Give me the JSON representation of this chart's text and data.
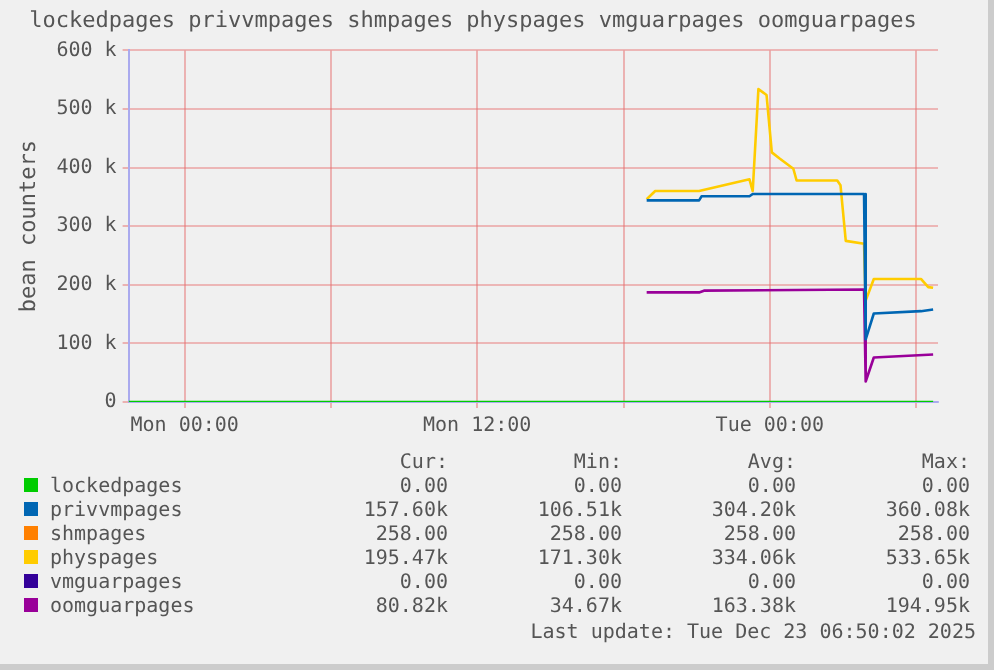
{
  "chart_data": {
    "type": "line",
    "title": "lockedpages privvmpages shmpages physpages vmguarpages oomguarpages",
    "ylabel": "bean counters",
    "xlim": [
      "2025-12-21T21:42",
      "2025-12-23T06:54"
    ],
    "xticks": [
      {
        "value": "2025-12-22T00:00",
        "label": "Mon 00:00"
      },
      {
        "value": "2025-12-22T06:00",
        "label": null
      },
      {
        "value": "2025-12-22T12:00",
        "label": "Mon 12:00"
      },
      {
        "value": "2025-12-22T18:00",
        "label": null
      },
      {
        "value": "2025-12-23T00:00",
        "label": "Tue 00:00"
      },
      {
        "value": "2025-12-23T06:00",
        "label": null
      }
    ],
    "ylim": [
      0,
      600000
    ],
    "yticks": [
      {
        "value": 0,
        "label": "0"
      },
      {
        "value": 100000,
        "label": "100 k"
      },
      {
        "value": 200000,
        "label": "200 k"
      },
      {
        "value": 300000,
        "label": "300 k"
      },
      {
        "value": 400000,
        "label": "400 k"
      },
      {
        "value": 500000,
        "label": "500 k"
      },
      {
        "value": 600000,
        "label": "600 k"
      }
    ],
    "grid": true,
    "legend": "bottom",
    "marker": "none",
    "line_style": "solid",
    "series": [
      {
        "name": "lockedpages",
        "color": "#00cc00",
        "x": [
          "2025-12-21T21:42",
          "2025-12-23T06:42"
        ],
        "values": [
          0,
          0
        ]
      },
      {
        "name": "privvmpages",
        "color": "#0066b3",
        "x": [
          "2025-12-22T18:57",
          "2025-12-22T21:06",
          "2025-12-22T21:12",
          "2025-12-22T23:10",
          "2025-12-22T23:18",
          "2025-12-23T03:52",
          "2025-12-23T03:56",
          "2025-12-23T04:16",
          "2025-12-23T06:12",
          "2025-12-23T06:42"
        ],
        "values": [
          344000,
          344000,
          351000,
          351000,
          355000,
          355000,
          107000,
          151000,
          155000,
          158000
        ]
      },
      {
        "name": "shmpages",
        "color": "#ff8000"
      },
      {
        "name": "physpages",
        "color": "#ffcc00",
        "x": [
          "2025-12-22T18:57",
          "2025-12-22T19:18",
          "2025-12-22T21:06",
          "2025-12-22T23:10",
          "2025-12-22T23:18",
          "2025-12-22T23:32",
          "2025-12-22T23:52",
          "2025-12-23T00:05",
          "2025-12-23T00:25",
          "2025-12-23T00:58",
          "2025-12-23T01:06",
          "2025-12-23T02:46",
          "2025-12-23T02:54",
          "2025-12-23T03:07",
          "2025-12-23T03:52",
          "2025-12-23T03:56",
          "2025-12-23T04:16",
          "2025-12-23T06:12",
          "2025-12-23T06:30",
          "2025-12-23T06:42"
        ],
        "values": [
          346000,
          360000,
          360000,
          380000,
          360000,
          534000,
          524000,
          426000,
          415000,
          398000,
          378000,
          378000,
          370000,
          275000,
          270000,
          173000,
          210000,
          210000,
          196000,
          195000
        ]
      },
      {
        "name": "vmguarpages",
        "color": "#330099"
      },
      {
        "name": "oomguarpages",
        "color": "#990099",
        "x": [
          "2025-12-22T18:57",
          "2025-12-22T21:06",
          "2025-12-22T21:18",
          "2025-12-23T03:52",
          "2025-12-23T03:56",
          "2025-12-23T04:16",
          "2025-12-23T06:42"
        ],
        "values": [
          187000,
          187000,
          190000,
          192000,
          35000,
          76000,
          81000
        ]
      }
    ],
    "annotations": [
      "Cur:",
      "Min:",
      "Avg:",
      "Max:",
      "0.00",
      "0.00",
      "0.00",
      "0.00",
      "157.60k",
      "106.51k",
      "304.20k",
      "360.08k",
      "258.00",
      "258.00",
      "258.00",
      "258.00",
      "195.47k",
      "171.30k",
      "334.06k",
      "533.65k",
      "0.00",
      "0.00",
      "0.00",
      "0.00",
      "80.82k",
      "34.67k",
      "163.38k",
      "194.95k",
      "Last update: Tue Dec 23 06:50:02 2025"
    ]
  }
}
